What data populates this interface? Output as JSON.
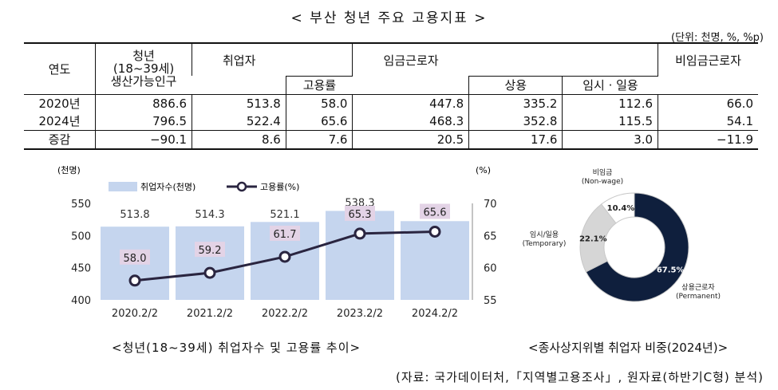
{
  "title": "< 부산 청년 주요 고용지표 >",
  "unit_note": "(단위: 천명, %, %p)",
  "table": {
    "headers": {
      "year": "연도",
      "population": "청년\n(18~39세)\n생산가능인구",
      "employed": "취업자",
      "employment_rate": "고용률",
      "wage_workers": "임금근로자",
      "regular": "상용",
      "temp_daily": "임시 · 일용",
      "non_wage": "비임금근로자"
    },
    "rows": [
      {
        "year": "2020년",
        "population": "886.6",
        "employed": "513.8",
        "employment_rate": "58.0",
        "wage_workers": "447.8",
        "regular": "335.2",
        "temp_daily": "112.6",
        "non_wage": "66.0"
      },
      {
        "year": "2024년",
        "population": "796.5",
        "employed": "522.4",
        "employment_rate": "65.6",
        "wage_workers": "468.3",
        "regular": "352.8",
        "temp_daily": "115.5",
        "non_wage": "54.1"
      },
      {
        "year": "증감",
        "population": "−90.1",
        "employed": "8.6",
        "employment_rate": "7.6",
        "wage_workers": "20.5",
        "regular": "17.6",
        "temp_daily": "3.0",
        "non_wage": "−11.9"
      }
    ]
  },
  "chart_data": [
    {
      "type": "bar",
      "left_unit": "(천명)",
      "right_unit": "(%)",
      "categories": [
        "2020.2/2",
        "2021.2/2",
        "2022.2/2",
        "2023.2/2",
        "2024.2/2"
      ],
      "series": [
        {
          "name": "취업자수(천명)",
          "type": "bar",
          "axis": "left",
          "values": [
            513.8,
            514.3,
            521.1,
            538.3,
            522.4
          ],
          "labels": [
            "513.8",
            "514.3",
            "521.1",
            "538.3",
            "522.4"
          ],
          "color": "#c5d5ee"
        },
        {
          "name": "고용률(%)",
          "type": "line",
          "axis": "right",
          "values": [
            58.0,
            59.2,
            61.7,
            65.3,
            65.6
          ],
          "labels": [
            "58.0",
            "59.2",
            "61.7",
            "65.3",
            "65.6"
          ],
          "color": "#2a2540",
          "label_bg": "#e3d3e6"
        }
      ],
      "left_ticks": [
        "550",
        "500",
        "450",
        "400"
      ],
      "right_ticks": [
        "70",
        "65",
        "60",
        "55"
      ],
      "ylim_left": [
        400,
        550
      ],
      "ylim_right": [
        55,
        70
      ],
      "caption": "<청년(18~39세) 취업자수 및 고용률 추이>"
    },
    {
      "type": "pie",
      "slices": [
        {
          "label": "상용근로자",
          "sublabel": "(Permanent)",
          "value": 67.5,
          "text": "67.5%",
          "color": "#0f1f3d"
        },
        {
          "label": "임시/일용",
          "sublabel": "(Temporary)",
          "value": 22.1,
          "text": "22.1%",
          "color": "#d6d6d6"
        },
        {
          "label": "비임금",
          "sublabel": "(Non-wage)",
          "value": 10.4,
          "text": "10.4%",
          "color": "#ffffff"
        }
      ],
      "caption": "<종사상지위별 취업자 비중(2024년)>"
    }
  ],
  "source": "(자료: 국가데이터처,「지역별고용조사」, 원자료(하반기C형) 분석)"
}
